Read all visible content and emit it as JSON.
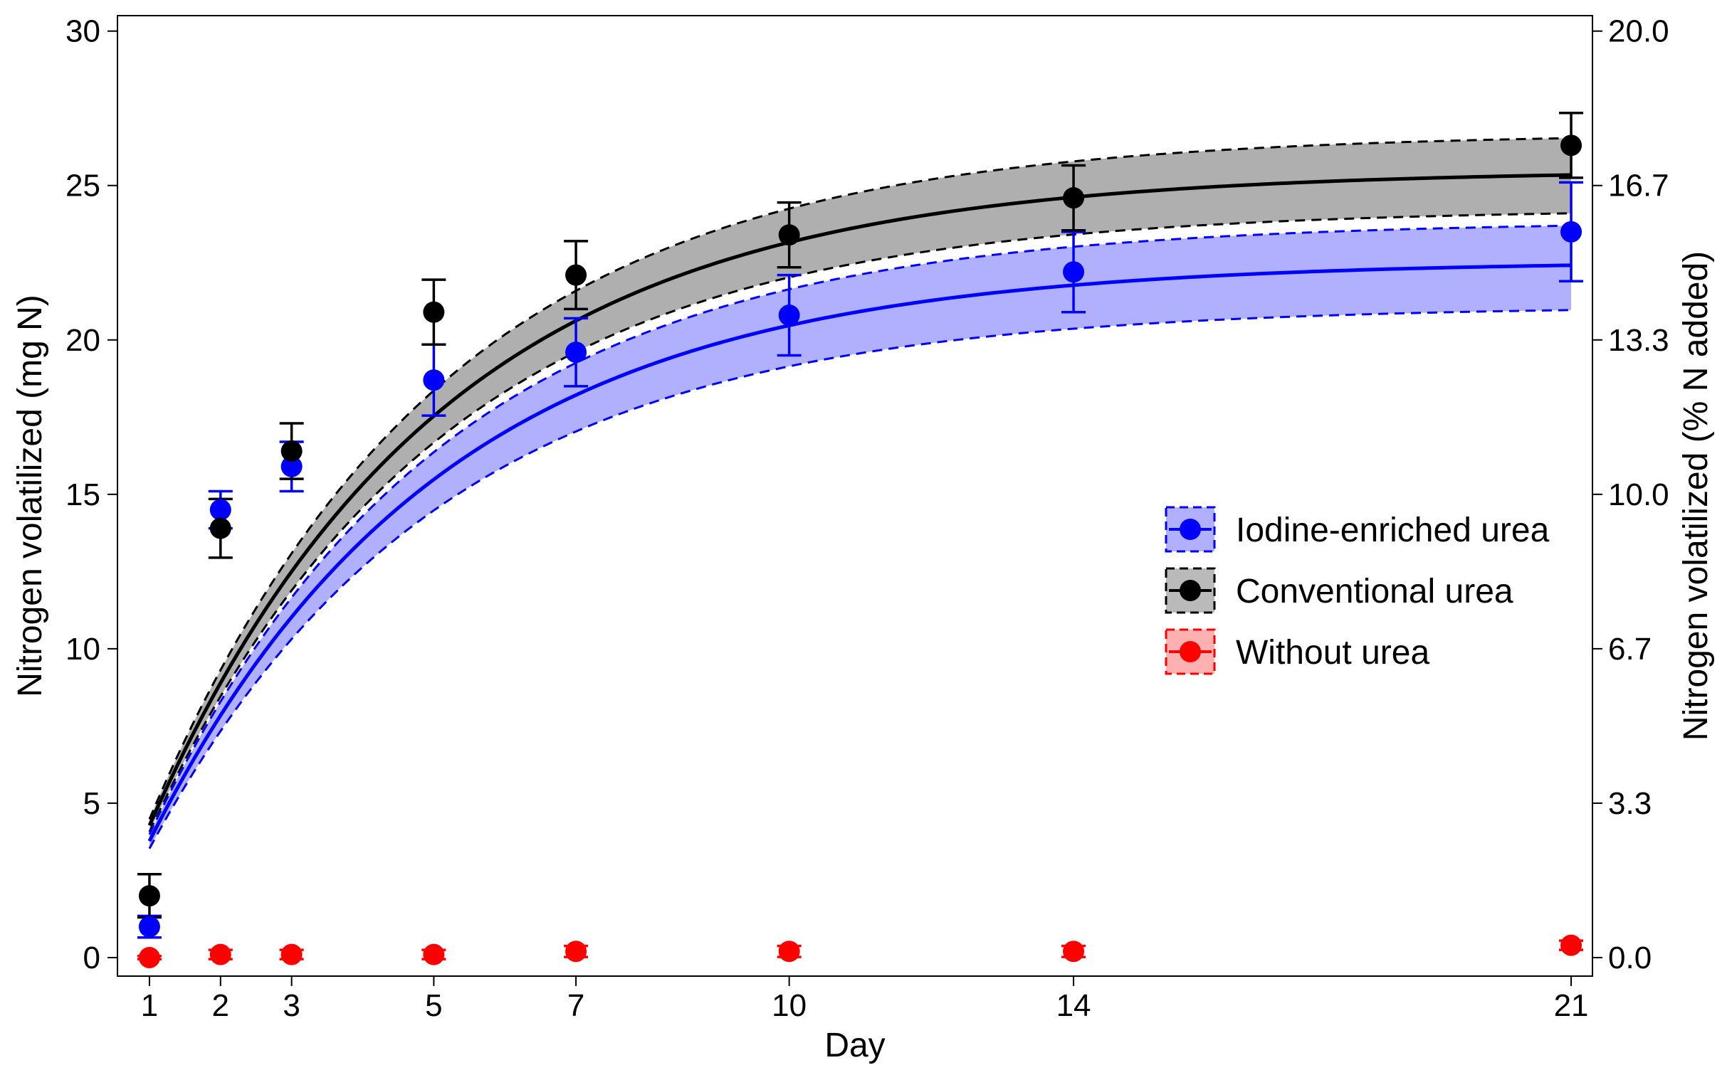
{
  "chart_data": {
    "type": "scatter",
    "xlabel": "Day",
    "ylabel": "Nitrogen volatilized (mg N)",
    "ylabel_right": "Nitrogen volatilized (% N added)",
    "x_ticks": [
      1,
      2,
      3,
      5,
      7,
      10,
      14,
      21
    ],
    "xlim": [
      0.55,
      21.3
    ],
    "ylim": [
      -0.6,
      30.5
    ],
    "y_ticks": [
      0,
      5,
      10,
      15,
      20,
      25,
      30
    ],
    "y_tick_labels": [
      "0",
      "5",
      "10",
      "15",
      "20",
      "25",
      "30"
    ],
    "y2_ticks": [
      0,
      5,
      10,
      15,
      20,
      25,
      30
    ],
    "y2_tick_labels": [
      "0.0",
      "3.3",
      "6.7",
      "10.0",
      "13.3",
      "16.7",
      "20.0"
    ],
    "grid": false,
    "legend_position": "right-middle",
    "series": [
      {
        "name": "Iodine-enriched urea",
        "color": "#0000ff",
        "band_color": "#8080ff",
        "x": [
          1,
          2,
          3,
          5,
          7,
          10,
          14,
          21
        ],
        "y": [
          1.0,
          14.5,
          15.9,
          18.7,
          19.6,
          20.8,
          22.2,
          23.5
        ],
        "err": [
          0.35,
          0.6,
          0.8,
          1.15,
          1.1,
          1.3,
          1.3,
          1.6
        ],
        "fit": {
          "a": 22.56,
          "k": 0.244,
          "x0": 0.25
        },
        "band": {
          "lower_a": 21.1,
          "upper_a": 23.85
        }
      },
      {
        "name": "Conventional urea",
        "color": "#000000",
        "band_color": "#909090",
        "x": [
          1,
          2,
          3,
          5,
          7,
          10,
          14,
          21
        ],
        "y": [
          2.0,
          13.9,
          16.4,
          20.9,
          22.1,
          23.4,
          24.6,
          26.3
        ],
        "err": [
          0.7,
          0.95,
          0.9,
          1.05,
          1.1,
          1.05,
          1.05,
          1.05
        ],
        "fit": {
          "a": 25.5,
          "k": 0.245,
          "x0": 0.25
        },
        "band": {
          "lower_a": 24.25,
          "upper_a": 26.7
        }
      },
      {
        "name": "Without urea",
        "color": "#ff0000",
        "band_color": "#ff8080",
        "x": [
          1,
          2,
          3,
          5,
          7,
          10,
          14,
          21
        ],
        "y": [
          0.0,
          0.1,
          0.1,
          0.1,
          0.2,
          0.2,
          0.2,
          0.4
        ],
        "err": [
          0.05,
          0.15,
          0.15,
          0.15,
          0.18,
          0.18,
          0.18,
          0.15
        ],
        "fit": null,
        "band": null
      }
    ]
  }
}
